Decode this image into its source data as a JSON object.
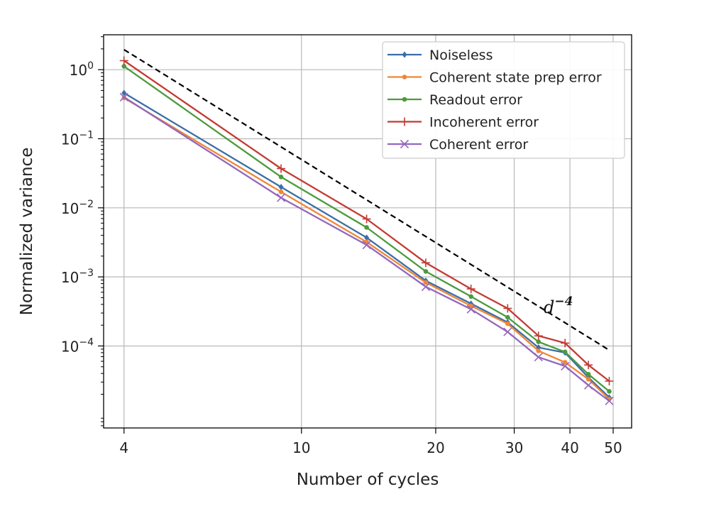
{
  "chart_data": {
    "type": "line",
    "xscale": "log",
    "yscale": "log",
    "xlabel": "Number of cycles",
    "ylabel": "Normalized variance",
    "xlim": [
      3.6,
      55
    ],
    "ylim": [
      6.5e-06,
      3.2
    ],
    "grid": true,
    "legend_position": "top-right",
    "x_ticks": [
      4,
      10,
      20,
      30,
      40,
      50
    ],
    "x_tick_labels": [
      "4",
      "10",
      "20",
      "30",
      "40",
      "50"
    ],
    "y_ticks": [
      1,
      0.1,
      0.01,
      0.001,
      0.0001
    ],
    "y_tick_labels": [
      {
        "base": "10",
        "exp": "0"
      },
      {
        "base": "10",
        "exp": "−1"
      },
      {
        "base": "10",
        "exp": "−2"
      },
      {
        "base": "10",
        "exp": "−3"
      },
      {
        "base": "10",
        "exp": "−4"
      }
    ],
    "x": [
      4,
      9,
      14,
      19,
      24,
      29,
      34,
      39,
      44,
      49
    ],
    "series": [
      {
        "name": "Noiseless",
        "color": "#3a6ea8",
        "marker": "diamond",
        "values": [
          0.46,
          0.02,
          0.0037,
          0.00088,
          0.00041,
          0.00022,
          9.5e-05,
          8e-05,
          3.5e-05,
          1.8e-05
        ]
      },
      {
        "name": "Coherent state prep error",
        "color": "#ef8636",
        "marker": "dot",
        "values": [
          0.39,
          0.017,
          0.0032,
          0.00083,
          0.00038,
          0.00021,
          8.5e-05,
          5.8e-05,
          3.3e-05,
          1.7e-05
        ]
      },
      {
        "name": "Readout error",
        "color": "#4d9a3d",
        "marker": "dot",
        "values": [
          1.12,
          0.028,
          0.0052,
          0.0012,
          0.00052,
          0.00026,
          0.000115,
          8.2e-05,
          3.9e-05,
          2.2e-05
        ]
      },
      {
        "name": "Incoherent error",
        "color": "#c23b33",
        "marker": "plus",
        "values": [
          1.35,
          0.037,
          0.0069,
          0.0016,
          0.00067,
          0.00035,
          0.00014,
          0.00011,
          5.3e-05,
          3.1e-05
        ]
      },
      {
        "name": "Coherent error",
        "color": "#9467bd",
        "marker": "x",
        "values": [
          0.4,
          0.014,
          0.0029,
          0.00072,
          0.00034,
          0.00016,
          6.9e-05,
          5.1e-05,
          2.7e-05,
          1.6e-05
        ]
      }
    ],
    "reference_line": {
      "label": "d",
      "exponent": "−4",
      "style": "dashed",
      "color": "#000000",
      "x": [
        4,
        49
      ],
      "values": [
        1.95,
        8.7e-05
      ]
    }
  }
}
